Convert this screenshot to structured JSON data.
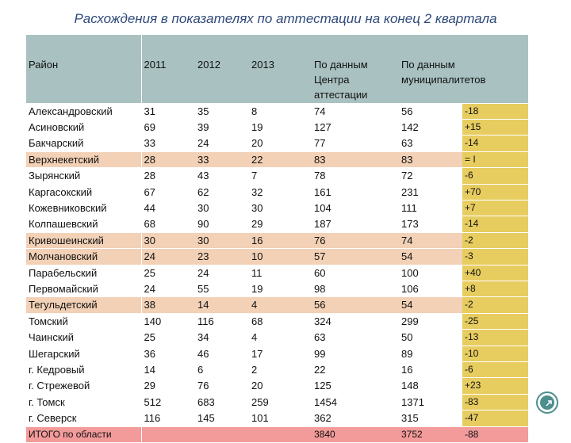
{
  "title": "Расхождения в показателях по аттестации на конец 2 квартала",
  "columns": [
    "Район",
    "2011",
    "2012",
    "2013",
    "По данным Центра аттестации",
    "По данным муниципалитетов",
    ""
  ],
  "rows": [
    {
      "name": "Александровский",
      "y2011": "31",
      "y2012": "35",
      "y2013": "8",
      "center": "74",
      "munic": "56",
      "diff": "-18",
      "style": "white"
    },
    {
      "name": "Асиновский",
      "y2011": "69",
      "y2012": "39",
      "y2013": "19",
      "center": "127",
      "munic": "142",
      "diff": "+15",
      "style": "white"
    },
    {
      "name": "Бакчарский",
      "y2011": "33",
      "y2012": "24",
      "y2013": "20",
      "center": "77",
      "munic": "63",
      "diff": "-14",
      "style": "white"
    },
    {
      "name": "Верхнекетский",
      "y2011": "28",
      "y2012": "33",
      "y2013": "22",
      "center": "83",
      "munic": "83",
      "diff": "= I",
      "style": "peach"
    },
    {
      "name": "Зырянский",
      "y2011": "28",
      "y2012": "43",
      "y2013": "7",
      "center": "78",
      "munic": "72",
      "diff": "-6",
      "style": "white"
    },
    {
      "name": "Каргасокский",
      "y2011": "67",
      "y2012": "62",
      "y2013": "32",
      "center": "161",
      "munic": "231",
      "diff": "+70",
      "style": "white"
    },
    {
      "name": "Кожевниковский",
      "y2011": "44",
      "y2012": "30",
      "y2013": "30",
      "center": "104",
      "munic": "111",
      "diff": "+7",
      "style": "white"
    },
    {
      "name": "Колпашевский",
      "y2011": "68",
      "y2012": "90",
      "y2013": "29",
      "center": "187",
      "munic": "173",
      "diff": "-14",
      "style": "white"
    },
    {
      "name": "Кривошеинский",
      "y2011": "30",
      "y2012": "30",
      "y2013": "16",
      "center": "76",
      "munic": "74",
      "diff": "-2",
      "style": "peach"
    },
    {
      "name": "Молчановский",
      "y2011": "24",
      "y2012": "23",
      "y2013": "10",
      "center": "57",
      "munic": "54",
      "diff": "-3",
      "style": "peach"
    },
    {
      "name": "Парабельский",
      "y2011": "25",
      "y2012": "24",
      "y2013": "11",
      "center": "60",
      "munic": "100",
      "diff": "+40",
      "style": "white"
    },
    {
      "name": "Первомайский",
      "y2011": "24",
      "y2012": "55",
      "y2013": "19",
      "center": "98",
      "munic": "106",
      "diff": "+8",
      "style": "white"
    },
    {
      "name": "Тегульдетский",
      "y2011": "38",
      "y2012": "14",
      "y2013": "4",
      "center": "56",
      "munic": "54",
      "diff": "-2",
      "style": "peach"
    },
    {
      "name": "Томский",
      "y2011": "140",
      "y2012": "116",
      "y2013": "68",
      "center": "324",
      "munic": "299",
      "diff": "-25",
      "style": "white"
    },
    {
      "name": "Чаинский",
      "y2011": "25",
      "y2012": "34",
      "y2013": "4",
      "center": "63",
      "munic": "50",
      "diff": "-13",
      "style": "white"
    },
    {
      "name": "Шегарский",
      "y2011": "36",
      "y2012": "46",
      "y2013": "17",
      "center": "99",
      "munic": "89",
      "diff": "-10",
      "style": "white"
    },
    {
      "name": "г. Кедровый",
      "y2011": "14",
      "y2012": "6",
      "y2013": "2",
      "center": "22",
      "munic": "16",
      "diff": "-6",
      "style": "white"
    },
    {
      "name": "г. Стрежевой",
      "y2011": "29",
      "y2012": "76",
      "y2013": "20",
      "center": "125",
      "munic": "148",
      "diff": "+23",
      "style": "white"
    },
    {
      "name": "г. Томск",
      "y2011": "512",
      "y2012": "683",
      "y2013": "259",
      "center": "1454",
      "munic": "1371",
      "diff": "-83",
      "style": "white"
    },
    {
      "name": "г. Северск",
      "y2011": "116",
      "y2012": "145",
      "y2013": "101",
      "center": "362",
      "munic": "315",
      "diff": "-47",
      "style": "white"
    }
  ],
  "total": {
    "name": "ИТОГО по области",
    "y2011": "",
    "y2012": "",
    "y2013": "",
    "center": "3840",
    "munic": "3752",
    "diff": "-88"
  },
  "nav_icon": "arrow-circle-icon"
}
